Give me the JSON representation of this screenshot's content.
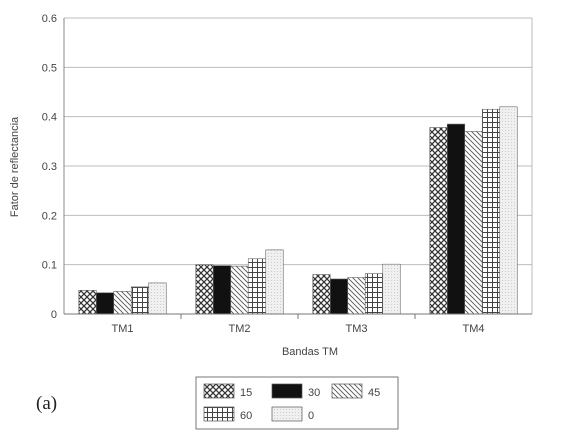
{
  "panel_label": "(a)",
  "chart_data": {
    "type": "bar",
    "title": "",
    "xlabel": "Bandas TM",
    "ylabel": "Fator de reflectancia",
    "ylim": [
      0,
      0.6
    ],
    "yticks": [
      "0",
      "0.1",
      "0.2",
      "0.3",
      "0.4",
      "0.5",
      "0.6"
    ],
    "grid": true,
    "legend_position": "bottom-center",
    "categories": [
      "TM1",
      "TM2",
      "TM3",
      "TM4"
    ],
    "series": [
      {
        "name": "15",
        "pattern": "cross-hatch",
        "values": [
          0.048,
          0.1,
          0.08,
          0.378
        ]
      },
      {
        "name": "30",
        "pattern": "solid-black",
        "values": [
          0.043,
          0.098,
          0.071,
          0.385
        ]
      },
      {
        "name": "45",
        "pattern": "diagonal",
        "values": [
          0.046,
          0.097,
          0.074,
          0.37
        ]
      },
      {
        "name": "60",
        "pattern": "grid",
        "values": [
          0.055,
          0.112,
          0.082,
          0.415
        ]
      },
      {
        "name": "0",
        "pattern": "dots",
        "values": [
          0.063,
          0.13,
          0.101,
          0.42
        ]
      }
    ]
  }
}
